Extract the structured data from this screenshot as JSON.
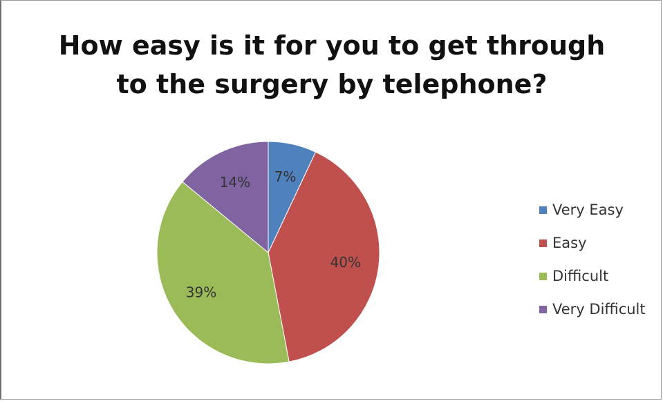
{
  "chart_data": {
    "type": "pie",
    "title": "How easy is it for you to get through to the surgery by telephone?",
    "title_lines": [
      "How easy is it for you to get through",
      "to the surgery by telephone?"
    ],
    "categories": [
      "Very Easy",
      "Easy",
      "Difficult",
      "Very Difficult"
    ],
    "values": [
      7,
      40,
      39,
      14
    ],
    "labels": [
      "7%",
      "40%",
      "39%",
      "14%"
    ],
    "colors": [
      "#4F81BD",
      "#C0504D",
      "#9BBB59",
      "#8064A2"
    ],
    "legend_position": "right"
  }
}
